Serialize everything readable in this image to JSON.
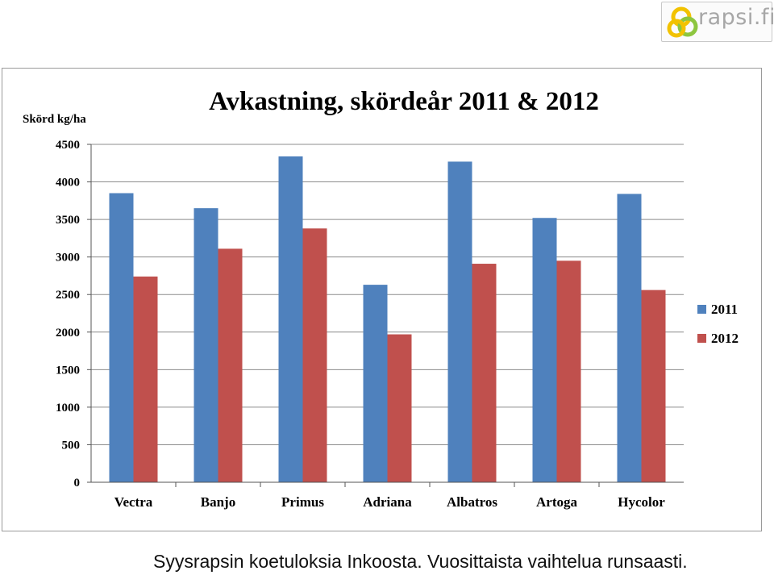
{
  "logo": {
    "text": "rapsi.fi"
  },
  "caption": "Syysrapsin koetuloksia Inkoosta. Vuosittaista vaihtelua runsaasti.",
  "colors": {
    "s2011": "#4f81bd",
    "s2012": "#c0504d",
    "grid": "#8c8c8c"
  },
  "chart_data": {
    "type": "bar",
    "title": "Avkastning, skördeår 2011 & 2012",
    "xlabel": "",
    "ylabel": "Skörd kg/ha",
    "ylim": [
      0,
      4500
    ],
    "yticks": [
      0,
      500,
      1000,
      1500,
      2000,
      2500,
      3000,
      3500,
      4000,
      4500
    ],
    "grid": true,
    "legend_position": "right",
    "categories": [
      "Vectra",
      "Banjo",
      "Primus",
      "Adriana",
      "Albatros",
      "Artoga",
      "Hycolor"
    ],
    "series": [
      {
        "name": "2011",
        "values": [
          3850,
          3650,
          4340,
          2630,
          4270,
          3520,
          3840
        ]
      },
      {
        "name": "2012",
        "values": [
          2740,
          3110,
          3380,
          1970,
          2910,
          2950,
          2560
        ]
      }
    ]
  }
}
